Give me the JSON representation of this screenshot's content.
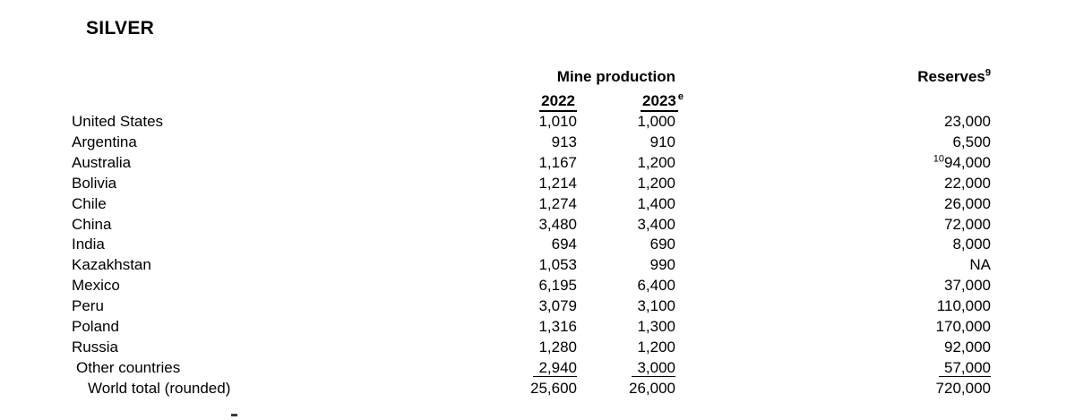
{
  "page": {
    "title": "SILVER"
  },
  "table": {
    "group_header": "Mine production",
    "headers": {
      "col_2022": "2022",
      "col_2023": "2023",
      "col_2023_sup": "e",
      "reserves": "Reserves",
      "reserves_sup": "9"
    },
    "rows": [
      {
        "country": "United States",
        "y2022": "1,010",
        "y2023": "1,000",
        "reserves": "23,000"
      },
      {
        "country": "Argentina",
        "y2022": "913",
        "y2023": "910",
        "reserves": "6,500"
      },
      {
        "country": "Australia",
        "y2022": "1,167",
        "y2023": "1,200",
        "reserves": "94,000",
        "reserves_sup": "10"
      },
      {
        "country": "Bolivia",
        "y2022": "1,214",
        "y2023": "1,200",
        "reserves": "22,000"
      },
      {
        "country": "Chile",
        "y2022": "1,274",
        "y2023": "1,400",
        "reserves": "26,000"
      },
      {
        "country": "China",
        "y2022": "3,480",
        "y2023": "3,400",
        "reserves": "72,000"
      },
      {
        "country": "India",
        "y2022": "694",
        "y2023": "690",
        "reserves": "8,000"
      },
      {
        "country": "Kazakhstan",
        "y2022": "1,053",
        "y2023": "990",
        "reserves": "NA"
      },
      {
        "country": "Mexico",
        "y2022": "6,195",
        "y2023": "6,400",
        "reserves": "37,000"
      },
      {
        "country": "Peru",
        "y2022": "3,079",
        "y2023": "3,100",
        "reserves": "110,000"
      },
      {
        "country": "Poland",
        "y2022": "1,316",
        "y2023": "1,300",
        "reserves": "170,000"
      },
      {
        "country": "Russia",
        "y2022": "1,280",
        "y2023": "1,200",
        "reserves": "92,000"
      },
      {
        "country": "Other countries",
        "y2022": "2,940",
        "y2023": "3,000",
        "reserves": "57,000"
      },
      {
        "country": "World total (rounded)",
        "y2022": "25,600",
        "y2023": "26,000",
        "reserves": "720,000"
      }
    ]
  }
}
